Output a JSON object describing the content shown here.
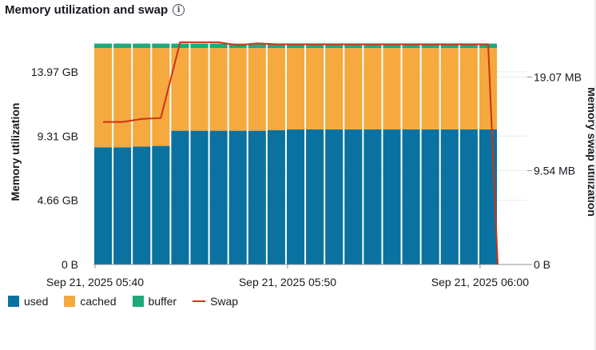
{
  "widget": {
    "title": "Memory utilization and swap",
    "info_icon": "info-icon"
  },
  "chart_data": {
    "type": "bar",
    "stacked": true,
    "title": "Memory utilization and swap",
    "ylabel": "Memory utilization",
    "y2label": "Memory swap utilization",
    "ylim": [
      0,
      16.4
    ],
    "y2lim": [
      0,
      23.0
    ],
    "yticks": [
      {
        "value": 0,
        "label": "0 B"
      },
      {
        "value": 4.66,
        "label": "4.66 GB"
      },
      {
        "value": 9.31,
        "label": "9.31 GB"
      },
      {
        "value": 13.97,
        "label": "13.97 GB"
      }
    ],
    "y2ticks": [
      {
        "value": 0,
        "label": "0 B"
      },
      {
        "value": 9.54,
        "label": "9.54 MB"
      },
      {
        "value": 19.07,
        "label": "19.07 MB"
      }
    ],
    "xticks": [
      {
        "index": 0,
        "label": "Sep 21, 2025 05:40"
      },
      {
        "index": 10,
        "label": "Sep 21, 2025 05:50"
      },
      {
        "index": 20,
        "label": "Sep 21, 2025 06:00"
      }
    ],
    "grid": true,
    "legend_position": "bottom-left",
    "colors": {
      "used": "#0972a0",
      "cached": "#f5a93f",
      "buffer": "#1ea97c",
      "swap": "#d13212"
    },
    "series": [
      {
        "name": "used",
        "kind": "bar",
        "values": [
          8.5,
          8.5,
          8.55,
          8.6,
          9.7,
          9.7,
          9.7,
          9.7,
          9.7,
          9.75,
          9.8,
          9.8,
          9.8,
          9.8,
          9.8,
          9.8,
          9.8,
          9.8,
          9.8,
          9.8,
          9.8
        ]
      },
      {
        "name": "cached",
        "kind": "bar",
        "values": [
          7.2,
          7.2,
          7.15,
          7.1,
          6.0,
          6.0,
          6.0,
          6.0,
          6.0,
          5.95,
          5.9,
          5.9,
          5.9,
          5.9,
          5.9,
          5.9,
          5.9,
          5.9,
          5.9,
          5.9,
          5.9
        ]
      },
      {
        "name": "buffer",
        "kind": "bar",
        "values": [
          0.32,
          0.32,
          0.32,
          0.32,
          0.32,
          0.32,
          0.32,
          0.32,
          0.32,
          0.32,
          0.32,
          0.32,
          0.32,
          0.32,
          0.32,
          0.32,
          0.32,
          0.32,
          0.32,
          0.32,
          0.32
        ]
      },
      {
        "name": "Swap",
        "kind": "line",
        "x": [
          0.0,
          1.0,
          2.0,
          3.0,
          4.0,
          5.0,
          6.0,
          7.0,
          8.0,
          9.0,
          10.0,
          11.0,
          12.0,
          13.0,
          14.0,
          15.0,
          16.0,
          17.0,
          18.0,
          19.0,
          20.0,
          20.5
        ],
        "values": [
          14.5,
          14.5,
          14.8,
          14.9,
          22.6,
          22.6,
          22.6,
          22.3,
          22.5,
          22.4,
          22.4,
          22.4,
          22.4,
          22.4,
          22.4,
          22.4,
          22.4,
          22.4,
          22.4,
          22.4,
          22.4,
          0.0
        ]
      }
    ]
  },
  "legend": [
    {
      "label": "used",
      "type": "box",
      "color": "#0972a0"
    },
    {
      "label": "cached",
      "type": "box",
      "color": "#f5a93f"
    },
    {
      "label": "buffer",
      "type": "box",
      "color": "#1ea97c"
    },
    {
      "label": "Swap",
      "type": "line",
      "color": "#d13212"
    }
  ]
}
